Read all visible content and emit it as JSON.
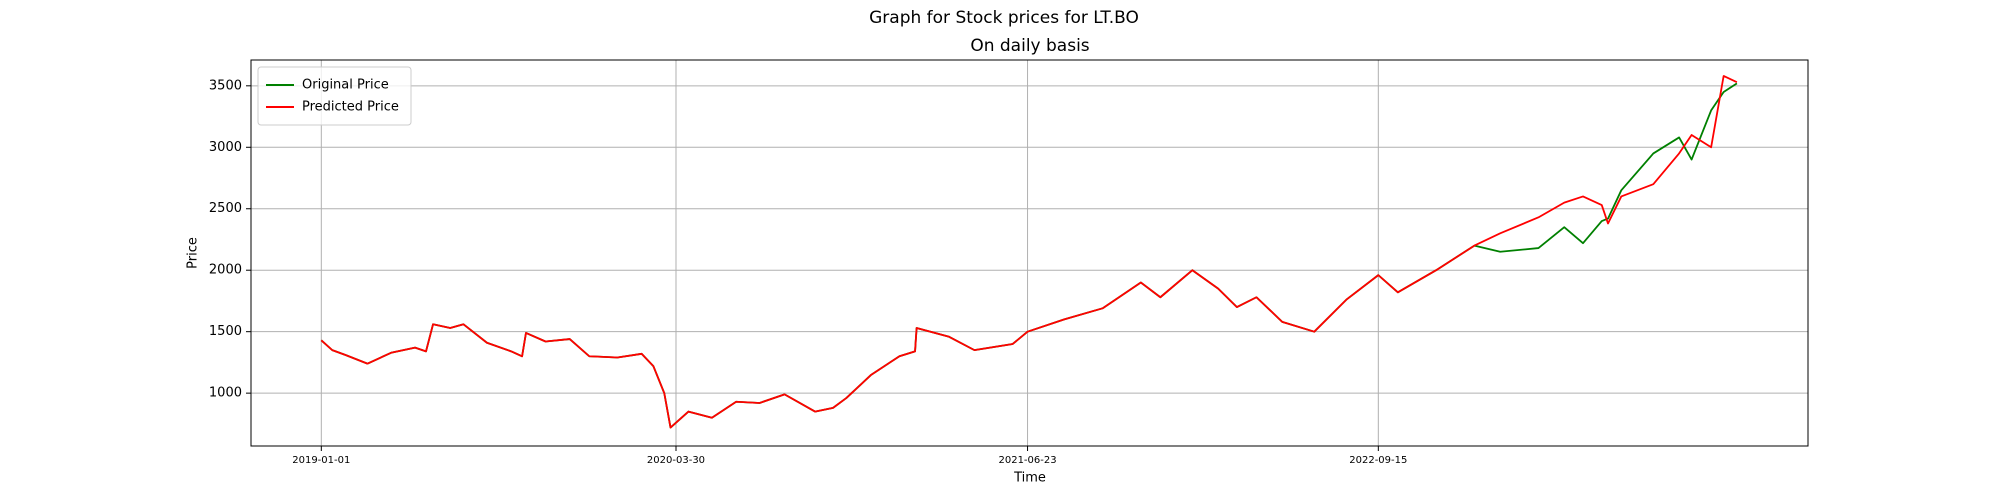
{
  "chart_data": {
    "type": "line",
    "title": "Graph for Stock prices for LT.BO",
    "subtitle": "On daily basis",
    "x_label": "Time",
    "y_label": "Price",
    "x": [
      "2019-01-01",
      "2019-01-15",
      "2019-02-01",
      "2019-03-01",
      "2019-04-01",
      "2019-05-01",
      "2019-05-15",
      "2019-05-24",
      "2019-06-15",
      "2019-07-02",
      "2019-08-01",
      "2019-09-01",
      "2019-09-15",
      "2019-09-20",
      "2019-10-15",
      "2019-11-15",
      "2019-12-10",
      "2020-01-15",
      "2020-02-15",
      "2020-03-01",
      "2020-03-15",
      "2020-03-23",
      "2020-04-15",
      "2020-05-15",
      "2020-06-15",
      "2020-07-15",
      "2020-08-16",
      "2020-09-24",
      "2020-10-17",
      "2020-11-03",
      "2020-12-05",
      "2021-01-10",
      "2021-01-30",
      "2021-02-01",
      "2021-03-14",
      "2021-04-16",
      "2021-06-04",
      "2021-06-23",
      "2021-08-09",
      "2021-09-27",
      "2021-11-15",
      "2021-12-10",
      "2022-01-20",
      "2022-02-22",
      "2022-03-18",
      "2022-04-12",
      "2022-05-15",
      "2022-06-25",
      "2022-08-05",
      "2022-09-15",
      "2022-10-10",
      "2022-11-28",
      "2023-01-16",
      "2023-02-18",
      "2023-04-08",
      "2023-05-11",
      "2023-06-04",
      "2023-06-28",
      "2023-07-06",
      "2023-07-23",
      "2023-09-02",
      "2023-10-05",
      "2023-10-21",
      "2023-11-15",
      "2023-12-01",
      "2023-12-18"
    ],
    "series": [
      {
        "name": "Original Price",
        "color": "#008000",
        "values": [
          1430,
          1350,
          1310,
          1240,
          1330,
          1370,
          1340,
          1560,
          1530,
          1560,
          1410,
          1340,
          1300,
          1490,
          1420,
          1440,
          1300,
          1290,
          1320,
          1220,
          1000,
          720,
          850,
          800,
          930,
          920,
          990,
          850,
          880,
          960,
          1150,
          1300,
          1340,
          1530,
          1460,
          1350,
          1400,
          1500,
          1600,
          1690,
          1900,
          1780,
          2000,
          1850,
          1700,
          1780,
          1580,
          1500,
          1760,
          1960,
          1820,
          2000,
          2200,
          2150,
          2180,
          2350,
          2220,
          2400,
          2420,
          2650,
          2950,
          3080,
          2900,
          3300,
          3450,
          3520
        ]
      },
      {
        "name": "Predicted Price",
        "color": "#ff0000",
        "values": [
          1430,
          1350,
          1310,
          1240,
          1330,
          1370,
          1340,
          1560,
          1530,
          1560,
          1410,
          1340,
          1300,
          1490,
          1420,
          1440,
          1300,
          1290,
          1320,
          1220,
          1000,
          720,
          850,
          800,
          930,
          920,
          990,
          850,
          880,
          960,
          1150,
          1300,
          1340,
          1530,
          1460,
          1350,
          1400,
          1500,
          1600,
          1690,
          1900,
          1780,
          2000,
          1850,
          1700,
          1780,
          1580,
          1500,
          1760,
          1960,
          1820,
          2000,
          2200,
          2300,
          2430,
          2550,
          2600,
          2530,
          2380,
          2600,
          2700,
          2950,
          3100,
          3000,
          3580,
          3530
        ]
      }
    ],
    "xlim": [
      "2018-10-03",
      "2024-03-18"
    ],
    "xticks": [
      "2019-01-01",
      "2020-03-30",
      "2021-06-23",
      "2022-09-15"
    ],
    "ylim": [
      570,
      3710
    ],
    "yticks": [
      1000,
      1500,
      2000,
      2500,
      3000,
      3500
    ],
    "grid": true,
    "legend": "upper-left"
  }
}
